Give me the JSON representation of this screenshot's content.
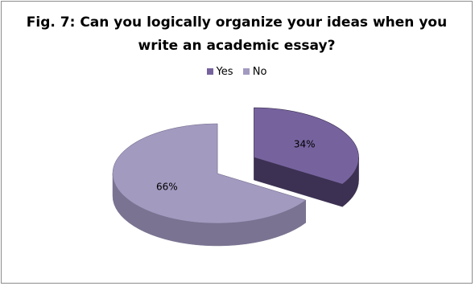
{
  "chart_data": {
    "type": "pie",
    "title_lines": [
      "Fig. 7: Can you logically organize your ideas when you",
      "write an academic essay?"
    ],
    "categories": [
      "Yes",
      "No"
    ],
    "values": [
      34,
      66
    ],
    "labels": [
      "34%",
      "66%"
    ],
    "colors": [
      "#76639e",
      "#a39ac0"
    ],
    "side_colors": [
      "#3c3152",
      "#7a7391"
    ],
    "exploded": "Yes",
    "legend_position": "top",
    "style": "3d"
  }
}
